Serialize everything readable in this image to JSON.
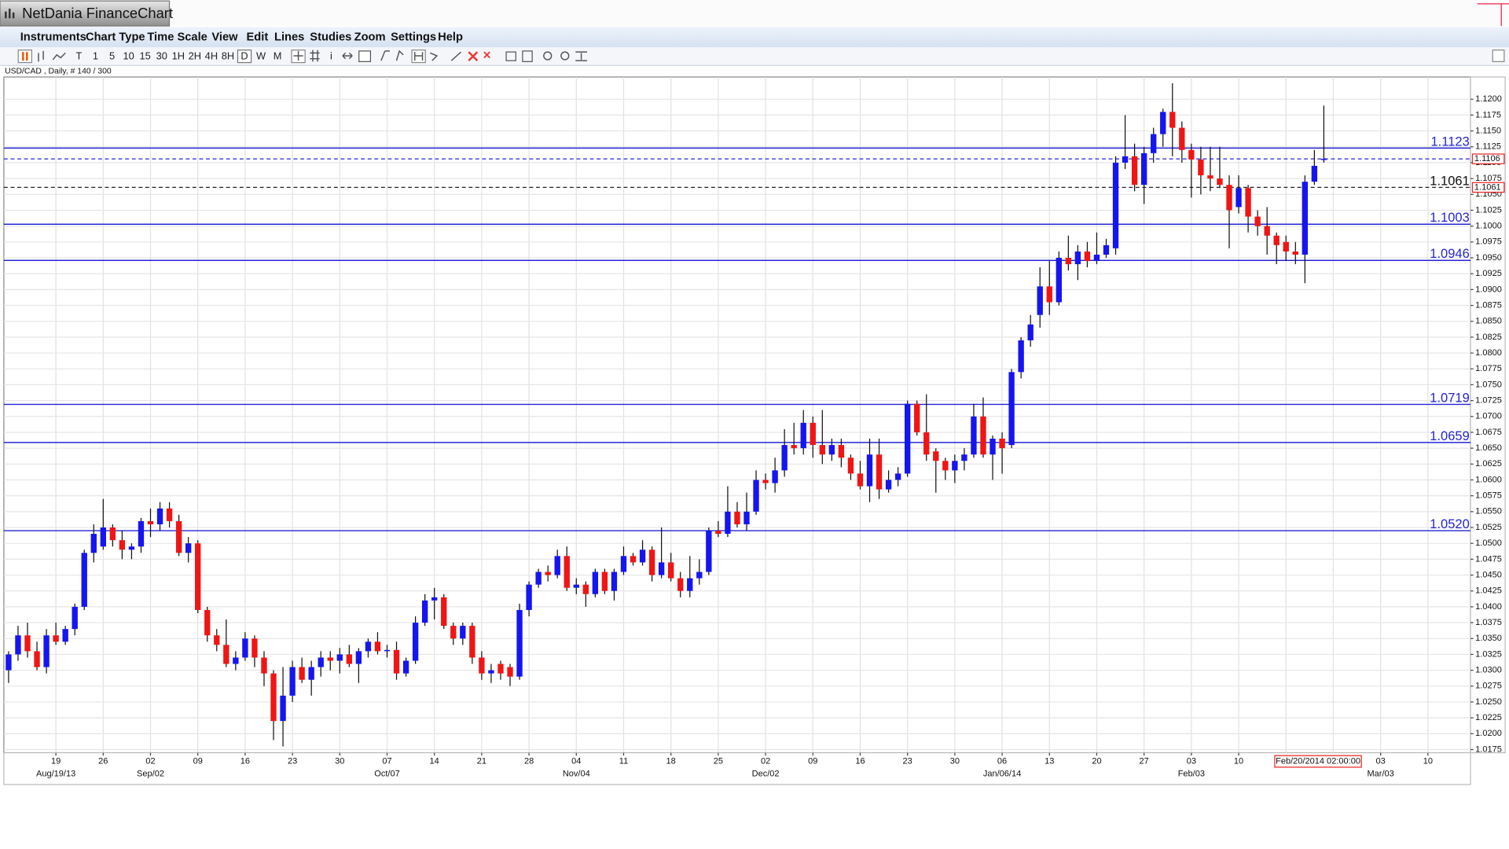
{
  "window": {
    "title": "NetDania FinanceChart",
    "menu": [
      "Instruments",
      "Chart Type",
      "Time Scale",
      "View",
      "Edit",
      "Lines",
      "Studies",
      "Zoom",
      "Settings",
      "Help"
    ],
    "timescales": [
      "T",
      "1",
      "5",
      "10",
      "15",
      "30",
      "1H",
      "2H",
      "4H",
      "8H",
      "D",
      "W",
      "M"
    ],
    "selected_timescale": "D",
    "symbol_info": "USD/CAD , Daily, # 140 / 300",
    "cursor_label": "Feb/20/2014 02:00:00"
  },
  "chart_data": {
    "type": "candlestick",
    "up_color": "#1515f0",
    "down_color": "#f01515",
    "level_color": "#2424d8",
    "categories": [
      null,
      null,
      null,
      null,
      null,
      "19",
      null,
      null,
      null,
      null,
      "26",
      null,
      null,
      null,
      null,
      "02",
      null,
      null,
      null,
      null,
      "09",
      null,
      null,
      null,
      null,
      "16",
      null,
      null,
      null,
      null,
      "23",
      null,
      null,
      null,
      null,
      "30",
      null,
      null,
      null,
      null,
      "07",
      null,
      null,
      null,
      null,
      "14",
      null,
      null,
      null,
      null,
      "21",
      null,
      null,
      null,
      null,
      "28",
      null,
      null,
      null,
      null,
      "04",
      null,
      null,
      null,
      null,
      "11",
      null,
      null,
      null,
      null,
      "18",
      null,
      null,
      null,
      null,
      "25",
      null,
      null,
      null,
      null,
      "02",
      null,
      null,
      null,
      null,
      "09",
      null,
      null,
      null,
      null,
      "16",
      null,
      null,
      null,
      null,
      "23",
      null,
      null,
      null,
      null,
      "30",
      null,
      null,
      null,
      null,
      "06",
      null,
      null,
      null,
      null,
      "13",
      null,
      null,
      null,
      null,
      "20",
      null,
      null,
      null,
      null,
      "27",
      null,
      null,
      null,
      null,
      "03",
      null,
      null,
      null,
      null,
      "10",
      null,
      null,
      null,
      null,
      null,
      null,
      null,
      null,
      null,
      null,
      null,
      null,
      null,
      null,
      "03",
      null,
      null,
      null,
      null,
      "10",
      null,
      null,
      null,
      null
    ],
    "month_labels": [
      null,
      null,
      null,
      null,
      null,
      "Aug/19/13",
      null,
      null,
      null,
      null,
      null,
      null,
      null,
      null,
      null,
      "Sep/02",
      null,
      null,
      null,
      null,
      null,
      null,
      null,
      null,
      null,
      null,
      null,
      null,
      null,
      null,
      null,
      null,
      null,
      null,
      null,
      null,
      null,
      null,
      null,
      null,
      "Oct/07",
      null,
      null,
      null,
      null,
      null,
      null,
      null,
      null,
      null,
      null,
      null,
      null,
      null,
      null,
      null,
      null,
      null,
      null,
      null,
      "Nov/04",
      null,
      null,
      null,
      null,
      null,
      null,
      null,
      null,
      null,
      null,
      null,
      null,
      null,
      null,
      null,
      null,
      null,
      null,
      null,
      "Dec/02",
      null,
      null,
      null,
      null,
      null,
      null,
      null,
      null,
      null,
      null,
      null,
      null,
      null,
      null,
      null,
      null,
      null,
      null,
      null,
      null,
      null,
      null,
      null,
      null,
      "Jan/06/14",
      null,
      null,
      null,
      null,
      null,
      null,
      null,
      null,
      null,
      null,
      null,
      null,
      null,
      null,
      null,
      null,
      null,
      null,
      null,
      "Feb/03",
      null,
      null,
      null,
      null,
      null,
      null,
      null,
      null,
      null,
      null,
      null,
      null,
      null,
      null,
      null,
      null,
      null,
      null,
      null,
      "Mar/03",
      null,
      null,
      null,
      null,
      null,
      null,
      null,
      null,
      null,
      null,
      null,
      null,
      null,
      null
    ],
    "open": [
      1.03,
      1.0325,
      1.0355,
      1.033,
      1.0305,
      1.0355,
      1.0345,
      1.0365,
      1.04,
      1.0485,
      1.0495,
      1.0525,
      1.0505,
      1.049,
      1.0495,
      1.0535,
      1.053,
      1.0555,
      1.0535,
      1.0485,
      1.05,
      1.0395,
      1.0355,
      1.034,
      1.031,
      1.032,
      1.035,
      1.032,
      1.0295,
      1.022,
      1.026,
      1.0305,
      1.0285,
      1.0305,
      1.032,
      1.0315,
      1.0325,
      1.031,
      1.033,
      1.0345,
      1.033,
      1.0332,
      1.0295,
      1.0315,
      1.0375,
      1.041,
      1.0415,
      1.037,
      1.035,
      1.037,
      1.032,
      1.0295,
      1.031,
      1.0305,
      1.029,
      1.0395,
      1.0435,
      1.0455,
      1.045,
      1.048,
      1.043,
      1.0435,
      1.042,
      1.0455,
      1.0425,
      1.0455,
      1.048,
      1.047,
      1.049,
      1.045,
      1.047,
      1.0445,
      1.0425,
      1.0445,
      1.0455,
      1.052,
      1.0515,
      1.055,
      1.053,
      1.055,
      1.06,
      1.0595,
      1.0615,
      1.0655,
      1.065,
      1.069,
      1.0655,
      1.064,
      1.0655,
      1.0635,
      1.061,
      1.059,
      1.064,
      1.0585,
      1.06,
      1.061,
      1.072,
      1.0675,
      1.0645,
      1.063,
      1.0615,
      1.063,
      1.064,
      1.07,
      1.064,
      1.0665,
      1.0655,
      1.077,
      1.082,
      1.086,
      1.0905,
      1.088,
      1.095,
      1.094,
      1.096,
      1.0945,
      1.0955,
      1.0965,
      1.11,
      1.111,
      1.1065,
      1.1115,
      1.1145,
      1.118,
      1.1155,
      1.112,
      1.1105,
      1.108,
      1.1075,
      1.1065,
      1.103,
      1.106,
      1.1015,
      1.1,
      1.0985,
      1.0975,
      1.096,
      1.0955,
      1.107,
      1.1105,
      null,
      null,
      null,
      null,
      null,
      null,
      null,
      null,
      null,
      null,
      null,
      null,
      null,
      null,
      null
    ],
    "high": [
      1.033,
      1.037,
      1.0375,
      1.0345,
      1.0365,
      1.0375,
      1.037,
      1.0405,
      1.049,
      1.053,
      1.057,
      1.053,
      1.052,
      1.05,
      1.054,
      1.0555,
      1.0565,
      1.0565,
      1.0545,
      1.051,
      1.0505,
      1.04,
      1.0365,
      1.038,
      1.033,
      1.036,
      1.0355,
      1.033,
      1.03,
      1.0305,
      1.0315,
      1.032,
      1.0315,
      1.033,
      1.033,
      1.0335,
      1.034,
      1.0335,
      1.035,
      1.036,
      1.034,
      1.0345,
      1.032,
      1.0385,
      1.042,
      1.043,
      1.042,
      1.0375,
      1.0375,
      1.0375,
      1.033,
      1.031,
      1.0315,
      1.031,
      1.0405,
      1.044,
      1.046,
      1.0465,
      1.049,
      1.0495,
      1.0445,
      1.044,
      1.046,
      1.046,
      1.046,
      1.0495,
      1.0485,
      1.0505,
      1.0495,
      1.0525,
      1.0485,
      1.0455,
      1.048,
      1.0475,
      1.0525,
      1.0535,
      1.059,
      1.0565,
      1.058,
      1.0615,
      1.061,
      1.0635,
      1.068,
      1.069,
      1.071,
      1.07,
      1.071,
      1.0665,
      1.0665,
      1.064,
      1.063,
      1.0665,
      1.0665,
      1.0615,
      1.062,
      1.0725,
      1.0725,
      1.0735,
      1.065,
      1.0635,
      1.064,
      1.065,
      1.072,
      1.073,
      1.067,
      1.0675,
      1.0775,
      1.0825,
      1.086,
      1.0935,
      1.0945,
      1.096,
      1.0985,
      1.097,
      1.0975,
      1.099,
      1.098,
      1.111,
      1.1175,
      1.113,
      1.1125,
      1.1155,
      1.1185,
      1.1225,
      1.1165,
      1.113,
      1.1125,
      1.1125,
      1.1125,
      1.108,
      1.108,
      1.1065,
      1.1025,
      1.103,
      1.099,
      1.0985,
      1.0975,
      1.108,
      1.112,
      1.119,
      null,
      null,
      null,
      null,
      null,
      null,
      null,
      null,
      null,
      null,
      null,
      null,
      null,
      null,
      null
    ],
    "low": [
      1.028,
      1.0315,
      1.032,
      1.03,
      1.0295,
      1.034,
      1.034,
      1.0355,
      1.0395,
      1.047,
      1.049,
      1.0495,
      1.0475,
      1.0475,
      1.0485,
      1.051,
      1.052,
      1.0525,
      1.048,
      1.047,
      1.039,
      1.0345,
      1.033,
      1.0305,
      1.03,
      1.0315,
      1.0305,
      1.0275,
      1.019,
      1.018,
      1.025,
      1.028,
      1.026,
      1.029,
      1.03,
      1.0295,
      1.0305,
      1.028,
      1.032,
      1.0325,
      1.032,
      1.0285,
      1.029,
      1.031,
      1.037,
      1.038,
      1.0365,
      1.034,
      1.034,
      1.031,
      1.0285,
      1.028,
      1.0285,
      1.0275,
      1.0285,
      1.0385,
      1.043,
      1.044,
      1.0445,
      1.0425,
      1.042,
      1.04,
      1.0415,
      1.042,
      1.041,
      1.045,
      1.0465,
      1.0465,
      1.044,
      1.0445,
      1.044,
      1.0415,
      1.0415,
      1.0435,
      1.045,
      1.051,
      1.051,
      1.0525,
      1.052,
      1.0545,
      1.0585,
      1.058,
      1.0605,
      1.064,
      1.064,
      1.0635,
      1.0625,
      1.063,
      1.062,
      1.06,
      1.0585,
      1.0565,
      1.057,
      1.058,
      1.059,
      1.0605,
      1.067,
      1.063,
      1.058,
      1.06,
      1.0595,
      1.0615,
      1.0635,
      1.0635,
      1.06,
      1.061,
      1.065,
      1.076,
      1.081,
      1.084,
      1.086,
      1.0875,
      1.093,
      1.0915,
      1.0935,
      1.094,
      1.095,
      1.0955,
      1.109,
      1.1055,
      1.1035,
      1.11,
      1.1125,
      1.111,
      1.11,
      1.1045,
      1.105,
      1.1055,
      1.106,
      1.0965,
      1.102,
      1.099,
      1.0985,
      1.0955,
      1.094,
      1.0945,
      1.094,
      1.091,
      1.1065,
      1.11,
      null,
      null,
      null,
      null,
      null,
      null,
      null,
      null,
      null,
      null,
      null,
      null,
      null,
      null,
      null
    ],
    "close": [
      1.0325,
      1.0355,
      1.033,
      1.0305,
      1.0355,
      1.0345,
      1.0365,
      1.04,
      1.0485,
      1.0515,
      1.0525,
      1.0505,
      1.049,
      1.0495,
      1.0535,
      1.053,
      1.0555,
      1.0535,
      1.0485,
      1.05,
      1.0395,
      1.0355,
      1.034,
      1.031,
      1.032,
      1.035,
      1.032,
      1.0295,
      1.022,
      1.026,
      1.0305,
      1.0285,
      1.0305,
      1.032,
      1.0315,
      1.0325,
      1.031,
      1.033,
      1.0345,
      1.033,
      1.0332,
      1.0295,
      1.0315,
      1.0375,
      1.041,
      1.0415,
      1.037,
      1.035,
      1.037,
      1.032,
      1.0295,
      1.03,
      1.0295,
      1.029,
      1.0395,
      1.0435,
      1.0455,
      1.045,
      1.048,
      1.043,
      1.0435,
      1.042,
      1.0455,
      1.0425,
      1.0455,
      1.048,
      1.047,
      1.049,
      1.045,
      1.047,
      1.0445,
      1.0425,
      1.0445,
      1.0455,
      1.052,
      1.0515,
      1.055,
      1.053,
      1.055,
      1.06,
      1.0595,
      1.0615,
      1.0655,
      1.065,
      1.069,
      1.0655,
      1.064,
      1.0655,
      1.0635,
      1.061,
      1.059,
      1.064,
      1.0585,
      1.06,
      1.061,
      1.072,
      1.0675,
      1.064,
      1.063,
      1.0615,
      1.063,
      1.064,
      1.07,
      1.064,
      1.0665,
      1.065,
      1.077,
      1.082,
      1.0845,
      1.0905,
      1.088,
      1.095,
      1.094,
      1.096,
      1.0945,
      1.0955,
      1.097,
      1.11,
      1.111,
      1.1065,
      1.1115,
      1.1145,
      1.118,
      1.1155,
      1.112,
      1.1105,
      1.108,
      1.1075,
      1.1065,
      1.1025,
      1.106,
      1.1015,
      1.1,
      1.0985,
      1.097,
      1.096,
      1.0955,
      1.107,
      1.1095,
      1.1106,
      null,
      null,
      null,
      null,
      null,
      null,
      null,
      null,
      null,
      null,
      null,
      null,
      null,
      null,
      null
    ],
    "ylim": [
      1.017,
      1.1235
    ],
    "yticks": [
      1.0175,
      {
        "value": 1.02,
        "label": "1.0200"
      },
      1.0225,
      {
        "value": 1.025,
        "label": "1.0250"
      },
      1.0275,
      {
        "value": 1.03,
        "label": "1.0300"
      },
      1.0325,
      {
        "value": 1.035,
        "label": "1.0350"
      },
      1.0375,
      {
        "value": 1.04,
        "label": "1.0400"
      },
      1.0425,
      {
        "value": 1.045,
        "label": "1.0450"
      },
      1.0475,
      {
        "value": 1.05,
        "label": "1.0500"
      },
      1.0525,
      {
        "value": 1.055,
        "label": "1.0550"
      },
      1.0575,
      {
        "value": 1.06,
        "label": "1.0600"
      },
      1.0625,
      {
        "value": 1.065,
        "label": "1.0650"
      },
      1.0675,
      {
        "value": 1.07,
        "label": "1.0700"
      },
      1.0725,
      {
        "value": 1.075,
        "label": "1.0750"
      },
      1.0775,
      {
        "value": 1.08,
        "label": "1.0800"
      },
      1.0825,
      {
        "value": 1.085,
        "label": "1.0850"
      },
      1.0875,
      {
        "value": 1.09,
        "label": "1.0900"
      },
      1.0925,
      {
        "value": 1.095,
        "label": "1.0950"
      },
      1.0975,
      {
        "value": 1.1,
        "label": "1.1000"
      },
      1.1025,
      {
        "value": 1.105,
        "label": "1.1050"
      },
      1.1075,
      {
        "value": 1.11,
        "label": "1.1100"
      },
      1.1125,
      {
        "value": 1.115,
        "label": "1.1150"
      },
      1.1175,
      {
        "value": 1.12,
        "label": "1.1200"
      }
    ],
    "grid": true,
    "levels": [
      1.1123,
      1.1003,
      1.0946,
      1.0719,
      1.0659,
      {
        "value": 1.052,
        "label": "1.0520"
      }
    ],
    "close_line": 1.1061,
    "price_line": 1.1106
  }
}
